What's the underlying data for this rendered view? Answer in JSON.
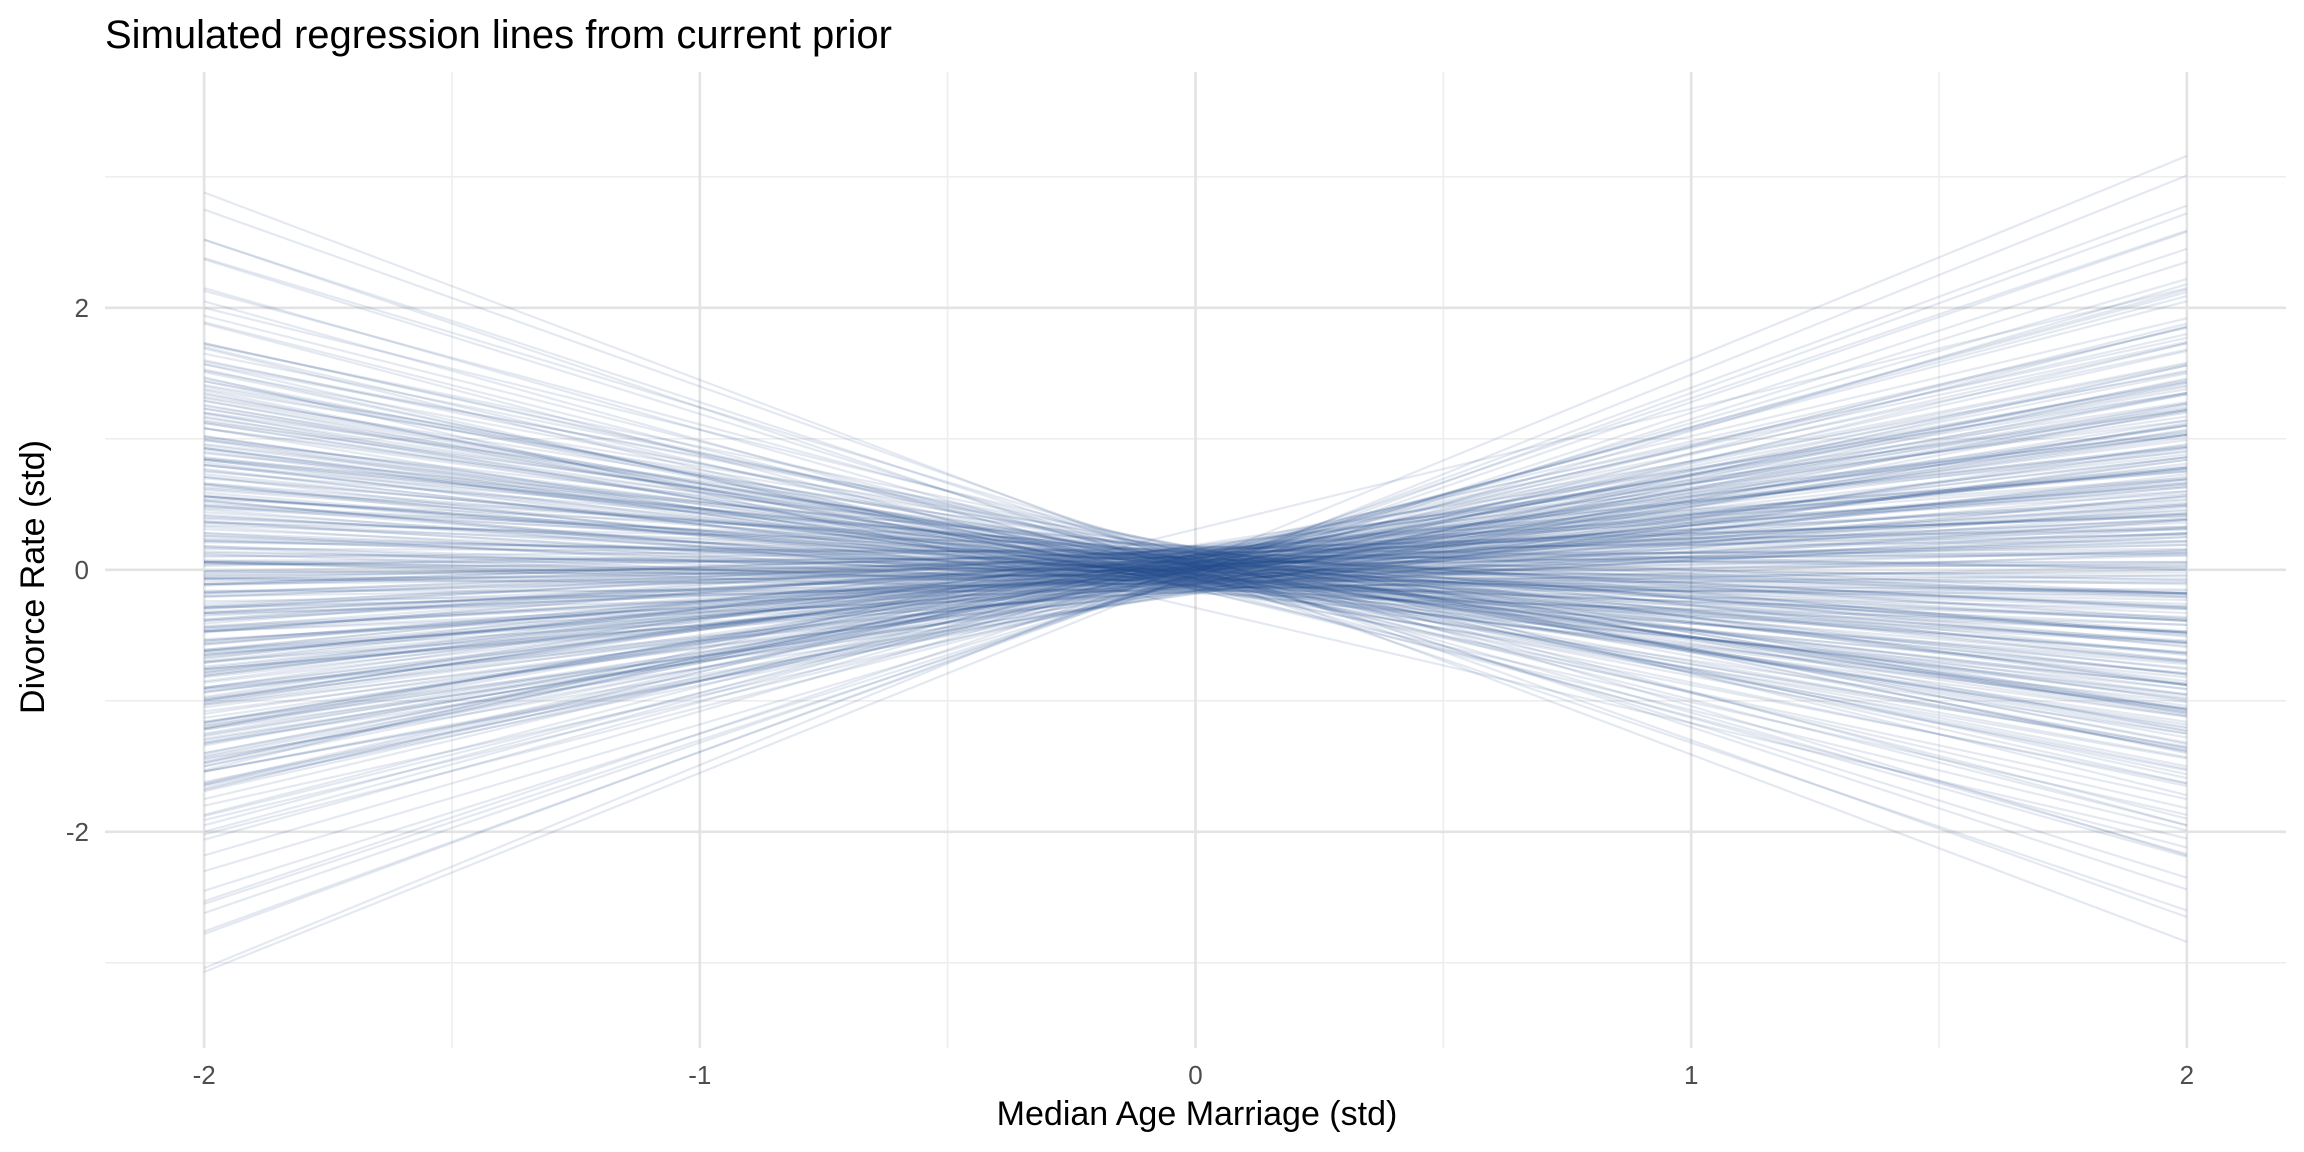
{
  "chart_data": {
    "type": "line",
    "title": "Simulated regression lines from current prior",
    "xlabel": "Median Age Marriage (std)",
    "ylabel": "Divorce Rate (std)",
    "xlim": [
      -2.2,
      2.2
    ],
    "ylim": [
      -3.65,
      3.8
    ],
    "x_ticks": [
      {
        "value": -2,
        "label": "-2"
      },
      {
        "value": -1,
        "label": "-1"
      },
      {
        "value": 0,
        "label": "0"
      },
      {
        "value": 1,
        "label": "1"
      },
      {
        "value": 2,
        "label": "2"
      }
    ],
    "x_minor_ticks": [
      -1.5,
      -0.5,
      0.5,
      1.5
    ],
    "y_ticks": [
      {
        "value": -2,
        "label": "-2"
      },
      {
        "value": 0,
        "label": "0"
      },
      {
        "value": 2,
        "label": "2"
      }
    ],
    "y_minor_ticks": [
      -3,
      -1,
      1,
      3
    ],
    "grid": true,
    "legend": "none",
    "line_color": "#1f4a8a",
    "line_opacity": 0.12,
    "x_range": [
      -2,
      2
    ],
    "model": "y = a + b * x",
    "series": [
      {
        "a": 0.02,
        "b": -1.43
      },
      {
        "a": -0.03,
        "b": 1.52
      },
      {
        "a": 0.06,
        "b": 1.55
      },
      {
        "a": -0.02,
        "b": 1.37
      },
      {
        "a": 0.05,
        "b": -1.35
      },
      {
        "a": -0.04,
        "b": -1.28
      },
      {
        "a": 0.03,
        "b": 1.28
      },
      {
        "a": -0.05,
        "b": 1.25
      },
      {
        "a": 0.01,
        "b": -1.18
      },
      {
        "a": -0.06,
        "b": 1.12
      },
      {
        "a": 0.04,
        "b": 1.05
      },
      {
        "a": -0.01,
        "b": -1.08
      },
      {
        "a": 0.07,
        "b": 1.01
      },
      {
        "a": 0.09,
        "b": -1.02
      },
      {
        "a": -0.08,
        "b": 0.97
      },
      {
        "a": 0.02,
        "b": -0.96
      },
      {
        "a": 0.0,
        "b": 1.39
      },
      {
        "a": 0.31,
        "b": 0.92
      },
      {
        "a": -0.29,
        "b": -0.88
      },
      {
        "a": 0.12,
        "b": 0.9
      },
      {
        "a": -0.15,
        "b": -0.92
      },
      {
        "a": 0.08,
        "b": 0.86
      },
      {
        "a": -0.12,
        "b": 0.84
      },
      {
        "a": 0.05,
        "b": -0.84
      },
      {
        "a": 0.15,
        "b": 0.81
      },
      {
        "a": -0.07,
        "b": -0.79
      },
      {
        "a": 0.1,
        "b": 0.79
      },
      {
        "a": -0.11,
        "b": 0.77
      },
      {
        "a": 0.13,
        "b": -0.76
      },
      {
        "a": 0.0,
        "b": 0.75
      },
      {
        "a": -0.04,
        "b": -0.74
      },
      {
        "a": 0.06,
        "b": 0.73
      },
      {
        "a": -0.09,
        "b": -0.72
      },
      {
        "a": 0.02,
        "b": 0.71
      },
      {
        "a": 0.17,
        "b": -0.7
      },
      {
        "a": -0.14,
        "b": 0.7
      },
      {
        "a": 0.04,
        "b": 0.68
      },
      {
        "a": -0.02,
        "b": -0.68
      },
      {
        "a": 0.11,
        "b": 0.66
      },
      {
        "a": -0.06,
        "b": -0.66
      },
      {
        "a": 0.08,
        "b": 0.65
      },
      {
        "a": -0.16,
        "b": 0.64
      },
      {
        "a": 0.03,
        "b": -0.63
      },
      {
        "a": 0.14,
        "b": -0.62
      },
      {
        "a": -0.03,
        "b": 0.62
      },
      {
        "a": 0.01,
        "b": -0.61
      },
      {
        "a": -0.1,
        "b": 0.6
      },
      {
        "a": 0.07,
        "b": -0.59
      },
      {
        "a": 0.19,
        "b": 0.58
      },
      {
        "a": -0.05,
        "b": 0.58
      },
      {
        "a": 0.05,
        "b": -0.57
      },
      {
        "a": -0.13,
        "b": -0.56
      },
      {
        "a": 0.12,
        "b": 0.56
      },
      {
        "a": 0.0,
        "b": 0.55
      },
      {
        "a": -0.08,
        "b": -0.54
      },
      {
        "a": 0.09,
        "b": 0.54
      },
      {
        "a": 0.02,
        "b": -0.53
      },
      {
        "a": -0.18,
        "b": 0.52
      },
      {
        "a": 0.16,
        "b": -0.52
      },
      {
        "a": -0.01,
        "b": 0.51
      },
      {
        "a": 0.06,
        "b": 0.5
      },
      {
        "a": -0.07,
        "b": -0.5
      },
      {
        "a": 0.1,
        "b": -0.49
      },
      {
        "a": -0.12,
        "b": 0.48
      },
      {
        "a": 0.03,
        "b": 0.48
      },
      {
        "a": -0.04,
        "b": -0.47
      },
      {
        "a": 0.13,
        "b": 0.46
      },
      {
        "a": 0.01,
        "b": -0.46
      },
      {
        "a": -0.09,
        "b": 0.45
      },
      {
        "a": 0.08,
        "b": -0.44
      },
      {
        "a": -0.02,
        "b": 0.44
      },
      {
        "a": 0.18,
        "b": 0.43
      },
      {
        "a": -0.15,
        "b": -0.43
      },
      {
        "a": 0.04,
        "b": 0.42
      },
      {
        "a": -0.06,
        "b": -0.41
      },
      {
        "a": 0.11,
        "b": 0.41
      },
      {
        "a": 0.0,
        "b": -0.4
      },
      {
        "a": -0.11,
        "b": 0.4
      },
      {
        "a": 0.07,
        "b": -0.39
      },
      {
        "a": 0.02,
        "b": 0.38
      },
      {
        "a": -0.03,
        "b": -0.38
      },
      {
        "a": 0.15,
        "b": -0.37
      },
      {
        "a": -0.17,
        "b": 0.37
      },
      {
        "a": 0.05,
        "b": 0.36
      },
      {
        "a": -0.05,
        "b": -0.35
      },
      {
        "a": 0.09,
        "b": 0.35
      },
      {
        "a": -0.08,
        "b": 0.34
      },
      {
        "a": 0.12,
        "b": -0.34
      },
      {
        "a": 0.01,
        "b": 0.33
      },
      {
        "a": -0.13,
        "b": -0.33
      },
      {
        "a": 0.06,
        "b": -0.32
      },
      {
        "a": -0.01,
        "b": 0.32
      },
      {
        "a": 0.14,
        "b": 0.31
      },
      {
        "a": -0.1,
        "b": -0.31
      },
      {
        "a": 0.03,
        "b": 0.3
      },
      {
        "a": -0.04,
        "b": -0.3
      },
      {
        "a": 0.17,
        "b": 0.29
      },
      {
        "a": 0.08,
        "b": -0.29
      },
      {
        "a": -0.07,
        "b": 0.28
      },
      {
        "a": 0.0,
        "b": -0.28
      },
      {
        "a": -0.16,
        "b": 0.27
      },
      {
        "a": 0.1,
        "b": 0.27
      },
      {
        "a": 0.04,
        "b": -0.26
      },
      {
        "a": -0.02,
        "b": 0.26
      },
      {
        "a": 0.13,
        "b": -0.25
      },
      {
        "a": -0.12,
        "b": 0.25
      },
      {
        "a": 0.02,
        "b": 0.24
      },
      {
        "a": -0.06,
        "b": -0.24
      },
      {
        "a": 0.07,
        "b": 0.23
      },
      {
        "a": -0.09,
        "b": -0.23
      },
      {
        "a": 0.16,
        "b": 0.22
      },
      {
        "a": 0.05,
        "b": -0.22
      },
      {
        "a": -0.03,
        "b": 0.21
      },
      {
        "a": -0.14,
        "b": -0.21
      },
      {
        "a": 0.11,
        "b": 0.2
      },
      {
        "a": 0.01,
        "b": -0.2
      },
      {
        "a": -0.05,
        "b": 0.19
      },
      {
        "a": 0.09,
        "b": -0.19
      },
      {
        "a": -0.11,
        "b": 0.18
      },
      {
        "a": 0.03,
        "b": 0.18
      },
      {
        "a": 0.14,
        "b": -0.17
      },
      {
        "a": -0.08,
        "b": -0.17
      },
      {
        "a": 0.06,
        "b": 0.16
      },
      {
        "a": -0.01,
        "b": -0.16
      },
      {
        "a": -0.17,
        "b": 0.15
      },
      {
        "a": 0.12,
        "b": 0.15
      },
      {
        "a": 0.0,
        "b": -0.14
      },
      {
        "a": -0.06,
        "b": 0.14
      },
      {
        "a": 0.08,
        "b": -0.13
      },
      {
        "a": 0.15,
        "b": 0.13
      },
      {
        "a": -0.12,
        "b": -0.12
      },
      {
        "a": 0.04,
        "b": 0.12
      },
      {
        "a": -0.04,
        "b": -0.11
      },
      {
        "a": 0.1,
        "b": 0.11
      },
      {
        "a": -0.09,
        "b": 0.1
      },
      {
        "a": 0.02,
        "b": -0.1
      },
      {
        "a": 0.18,
        "b": -0.09
      },
      {
        "a": -0.15,
        "b": 0.09
      },
      {
        "a": 0.05,
        "b": 0.08
      },
      {
        "a": -0.02,
        "b": -0.08
      },
      {
        "a": 0.13,
        "b": 0.07
      },
      {
        "a": -0.07,
        "b": -0.07
      },
      {
        "a": 0.07,
        "b": 0.06
      },
      {
        "a": 0.01,
        "b": -0.06
      },
      {
        "a": -0.1,
        "b": 0.05
      },
      {
        "a": 0.11,
        "b": -0.05
      },
      {
        "a": -0.03,
        "b": 0.04
      },
      {
        "a": 0.03,
        "b": -0.04
      },
      {
        "a": -0.13,
        "b": -0.03
      },
      {
        "a": 0.16,
        "b": 0.03
      },
      {
        "a": 0.0,
        "b": 0.02
      },
      {
        "a": -0.05,
        "b": -0.02
      },
      {
        "a": 0.09,
        "b": 0.01
      },
      {
        "a": -0.08,
        "b": -0.01
      },
      {
        "a": 0.06,
        "b": 0.0
      },
      {
        "a": -0.16,
        "b": 0.0
      },
      {
        "a": 0.14,
        "b": -0.01
      },
      {
        "a": -0.04,
        "b": 0.01
      },
      {
        "a": 0.02,
        "b": 0.02
      },
      {
        "a": -0.11,
        "b": -0.02
      },
      {
        "a": 0.1,
        "b": 0.03
      },
      {
        "a": -0.01,
        "b": -0.03
      },
      {
        "a": 0.05,
        "b": 0.04
      },
      {
        "a": -0.14,
        "b": 0.05
      },
      {
        "a": 0.12,
        "b": -0.05
      },
      {
        "a": -0.06,
        "b": -0.06
      },
      {
        "a": 0.03,
        "b": 0.06
      },
      {
        "a": 0.17,
        "b": 0.07
      },
      {
        "a": -0.09,
        "b": -0.07
      },
      {
        "a": 0.08,
        "b": -0.08
      },
      {
        "a": -0.02,
        "b": 0.08
      },
      {
        "a": 0.01,
        "b": 0.09
      },
      {
        "a": -0.12,
        "b": -0.09
      },
      {
        "a": 0.13,
        "b": 0.1
      },
      {
        "a": -0.07,
        "b": 0.11
      },
      {
        "a": 0.04,
        "b": -0.11
      },
      {
        "a": -0.18,
        "b": -0.12
      },
      {
        "a": 0.07,
        "b": 0.12
      },
      {
        "a": -0.03,
        "b": -0.13
      },
      {
        "a": 0.15,
        "b": 0.13
      },
      {
        "a": 0.0,
        "b": 0.14
      },
      {
        "a": -0.1,
        "b": -0.14
      },
      {
        "a": 0.09,
        "b": -0.15
      },
      {
        "a": -0.05,
        "b": 0.15
      },
      {
        "a": 0.11,
        "b": 0.16
      },
      {
        "a": -0.15,
        "b": -0.16
      },
      {
        "a": 0.02,
        "b": 0.17
      },
      {
        "a": 0.06,
        "b": -0.17
      },
      {
        "a": -0.08,
        "b": 0.18
      },
      {
        "a": 0.18,
        "b": -0.18
      },
      {
        "a": -0.01,
        "b": -0.19
      },
      {
        "a": 0.05,
        "b": 0.19
      },
      {
        "a": -0.13,
        "b": 0.2
      },
      {
        "a": 0.1,
        "b": -0.2
      },
      {
        "a": 0.03,
        "b": 0.21
      },
      {
        "a": -0.06,
        "b": -0.21
      },
      {
        "a": 0.14,
        "b": 0.22
      },
      {
        "a": -0.11,
        "b": -0.22
      },
      {
        "a": 0.08,
        "b": 0.23
      },
      {
        "a": -0.02,
        "b": -0.23
      },
      {
        "a": 0.01,
        "b": 0.24
      },
      {
        "a": -0.16,
        "b": 0.24
      },
      {
        "a": 0.12,
        "b": -0.25
      },
      {
        "a": -0.04,
        "b": 0.25
      },
      {
        "a": 0.04,
        "b": -0.26
      },
      {
        "a": -0.09,
        "b": 0.26
      },
      {
        "a": 0.16,
        "b": 0.27
      },
      {
        "a": 0.07,
        "b": -0.27
      },
      {
        "a": -0.07,
        "b": -0.28
      },
      {
        "a": 0.0,
        "b": 0.28
      },
      {
        "a": -0.12,
        "b": -0.29
      },
      {
        "a": 0.11,
        "b": 0.29
      },
      {
        "a": 0.05,
        "b": 0.3
      },
      {
        "a": -0.03,
        "b": -0.3
      },
      {
        "a": 0.13,
        "b": -0.31
      },
      {
        "a": -0.14,
        "b": 0.31
      },
      {
        "a": 0.02,
        "b": 0.32
      },
      {
        "a": -0.05,
        "b": -0.32
      },
      {
        "a": 0.09,
        "b": 0.33
      },
      {
        "a": -0.1,
        "b": 0.33
      },
      {
        "a": 0.17,
        "b": -0.34
      },
      {
        "a": 0.03,
        "b": -0.34
      },
      {
        "a": -0.01,
        "b": 0.35
      },
      {
        "a": -0.17,
        "b": -0.35
      },
      {
        "a": 0.06,
        "b": 0.36
      },
      {
        "a": -0.06,
        "b": 0.36
      },
      {
        "a": 0.1,
        "b": -0.37
      },
      {
        "a": -0.08,
        "b": -0.37
      },
      {
        "a": 0.14,
        "b": 0.38
      },
      {
        "a": 0.01,
        "b": 0.38
      },
      {
        "a": -0.13,
        "b": -0.39
      },
      {
        "a": 0.08,
        "b": -0.39
      },
      {
        "a": -0.02,
        "b": 0.4
      },
      {
        "a": 0.04,
        "b": -0.4
      },
      {
        "a": -0.11,
        "b": 0.41
      },
      {
        "a": 0.12,
        "b": 0.41
      },
      {
        "a": -0.04,
        "b": -0.42
      },
      {
        "a": 0.15,
        "b": -0.42
      },
      {
        "a": 0.0,
        "b": 0.43
      },
      {
        "a": -0.09,
        "b": -0.43
      },
      {
        "a": 0.07,
        "b": 0.44
      },
      {
        "a": -0.15,
        "b": 0.44
      },
      {
        "a": 0.05,
        "b": -0.45
      },
      {
        "a": -0.06,
        "b": -0.45
      },
      {
        "a": 0.11,
        "b": 0.46
      },
      {
        "a": 0.02,
        "b": 0.46
      },
      {
        "a": -0.12,
        "b": -0.47
      },
      {
        "a": 0.09,
        "b": 0.47
      },
      {
        "a": -0.03,
        "b": -0.48
      },
      {
        "a": 0.18,
        "b": 0.48
      },
      {
        "a": -0.07,
        "b": 0.49
      },
      {
        "a": 0.03,
        "b": -0.49
      },
      {
        "a": -0.16,
        "b": 0.5
      },
      {
        "a": 0.13,
        "b": -0.5
      },
      {
        "a": 0.01,
        "b": 0.51
      },
      {
        "a": -0.1,
        "b": -0.51
      },
      {
        "a": 0.06,
        "b": 0.52
      },
      {
        "a": -0.02,
        "b": -0.52
      },
      {
        "a": 0.16,
        "b": 0.53
      },
      {
        "a": -0.13,
        "b": 0.53
      },
      {
        "a": 0.08,
        "b": -0.54
      },
      {
        "a": -0.05,
        "b": 0.54
      },
      {
        "a": 0.04,
        "b": -0.55
      },
      {
        "a": -0.08,
        "b": -0.55
      },
      {
        "a": 0.1,
        "b": 0.56
      },
      {
        "a": 0.0,
        "b": -0.56
      },
      {
        "a": -0.18,
        "b": 0.57
      },
      {
        "a": 0.14,
        "b": 0.57
      },
      {
        "a": -0.04,
        "b": -0.58
      },
      {
        "a": 0.07,
        "b": -0.58
      },
      {
        "a": -0.11,
        "b": 0.59
      },
      {
        "a": 0.02,
        "b": 0.59
      },
      {
        "a": 0.12,
        "b": -0.6
      },
      {
        "a": -0.06,
        "b": 0.6
      },
      {
        "a": 0.05,
        "b": 0.61
      },
      {
        "a": -0.14,
        "b": -0.61
      },
      {
        "a": 0.17,
        "b": -0.62
      },
      {
        "a": -0.01,
        "b": 0.62
      },
      {
        "a": 0.09,
        "b": 0.63
      },
      {
        "a": -0.09,
        "b": -0.63
      },
      {
        "a": 0.03,
        "b": -0.64
      },
      {
        "a": -0.03,
        "b": 0.65
      },
      {
        "a": 0.11,
        "b": 0.65
      },
      {
        "a": -0.12,
        "b": -0.66
      },
      {
        "a": 0.06,
        "b": -0.67
      },
      {
        "a": 0.0,
        "b": 0.67
      },
      {
        "a": -0.07,
        "b": -0.68
      },
      {
        "a": 0.15,
        "b": 0.68
      },
      {
        "a": -0.16,
        "b": 0.69
      },
      {
        "a": 0.04,
        "b": -0.7
      },
      {
        "a": -0.05,
        "b": 0.7
      },
      {
        "a": 0.1,
        "b": -0.71
      },
      {
        "a": -0.1,
        "b": 0.72
      },
      {
        "a": 0.01,
        "b": 0.72
      },
      {
        "a": 0.13,
        "b": -0.73
      },
      {
        "a": -0.02,
        "b": -0.74
      },
      {
        "a": 0.08,
        "b": 0.75
      },
      {
        "a": -0.13,
        "b": -0.75
      },
      {
        "a": 0.05,
        "b": 0.76
      },
      {
        "a": -0.08,
        "b": 0.77
      },
      {
        "a": 0.16,
        "b": -0.78
      },
      {
        "a": 0.02,
        "b": -0.79
      },
      {
        "a": -0.04,
        "b": 0.8
      },
      {
        "a": 0.12,
        "b": 0.81
      },
      {
        "a": -0.11,
        "b": -0.82
      },
      {
        "a": 0.07,
        "b": -0.83
      },
      {
        "a": -0.01,
        "b": 0.84
      },
      {
        "a": 0.03,
        "b": 0.85
      },
      {
        "a": -0.15,
        "b": -0.86
      },
      {
        "a": 0.11,
        "b": 0.87
      },
      {
        "a": -0.06,
        "b": -0.88
      },
      {
        "a": 0.05,
        "b": 0.9
      },
      {
        "a": -0.09,
        "b": 0.91
      },
      {
        "a": 0.14,
        "b": -0.93
      },
      {
        "a": 0.0,
        "b": 0.94
      },
      {
        "a": -0.03,
        "b": -0.96
      },
      {
        "a": 0.09,
        "b": 0.98
      },
      {
        "a": -0.12,
        "b": -1.0
      },
      {
        "a": 0.06,
        "b": 1.03
      },
      {
        "a": -0.07,
        "b": -1.06
      },
      {
        "a": 0.02,
        "b": 1.1
      },
      {
        "a": 0.1,
        "b": -1.14
      },
      {
        "a": -0.05,
        "b": 1.2
      },
      {
        "a": 0.04,
        "b": -1.24
      },
      {
        "a": -0.02,
        "b": 1.3
      }
    ]
  }
}
